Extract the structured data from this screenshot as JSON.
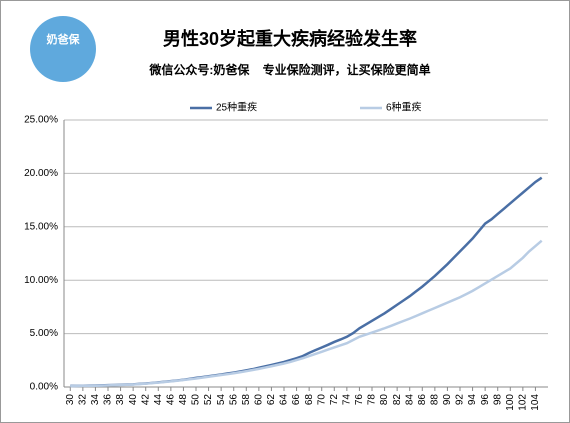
{
  "chart_data": {
    "type": "line",
    "logo": "奶爸保",
    "title": "男性30岁起重大疾病经验发生率",
    "subtitle": "微信公众号:奶爸保    专业保险测评，让买保险更简单",
    "x": [
      30,
      31,
      32,
      33,
      34,
      35,
      36,
      37,
      38,
      39,
      40,
      41,
      42,
      43,
      44,
      45,
      46,
      47,
      48,
      49,
      50,
      51,
      52,
      53,
      54,
      55,
      56,
      57,
      58,
      59,
      60,
      61,
      62,
      63,
      64,
      65,
      66,
      67,
      68,
      69,
      70,
      71,
      72,
      73,
      74,
      75,
      76,
      77,
      78,
      79,
      80,
      81,
      82,
      83,
      84,
      85,
      86,
      87,
      88,
      89,
      90,
      91,
      92,
      93,
      94,
      95,
      96,
      97,
      98,
      99,
      100,
      101,
      102,
      103,
      104,
      105
    ],
    "series": [
      {
        "name": "25种重疾",
        "color": "#4a6fa5",
        "values": [
          0.1,
          0.11,
          0.12,
          0.13,
          0.14,
          0.15,
          0.17,
          0.19,
          0.21,
          0.23,
          0.25,
          0.29,
          0.33,
          0.38,
          0.43,
          0.49,
          0.55,
          0.61,
          0.68,
          0.76,
          0.85,
          0.93,
          1.01,
          1.09,
          1.17,
          1.26,
          1.35,
          1.45,
          1.56,
          1.67,
          1.8,
          1.93,
          2.06,
          2.2,
          2.35,
          2.52,
          2.7,
          2.9,
          3.2,
          3.45,
          3.7,
          3.95,
          4.22,
          4.45,
          4.7,
          5.05,
          5.5,
          5.85,
          6.2,
          6.55,
          6.9,
          7.3,
          7.7,
          8.1,
          8.5,
          8.95,
          9.4,
          9.9,
          10.4,
          10.95,
          11.5,
          12.1,
          12.7,
          13.3,
          13.9,
          14.6,
          15.3,
          15.7,
          16.2,
          16.7,
          17.2,
          17.7,
          18.2,
          18.7,
          19.2,
          19.6
        ]
      },
      {
        "name": "6种重疾",
        "color": "#b8cce4",
        "values": [
          0.08,
          0.09,
          0.1,
          0.11,
          0.12,
          0.13,
          0.15,
          0.17,
          0.19,
          0.21,
          0.23,
          0.27,
          0.31,
          0.36,
          0.41,
          0.47,
          0.53,
          0.59,
          0.66,
          0.73,
          0.8,
          0.88,
          0.96,
          1.04,
          1.12,
          1.2,
          1.29,
          1.38,
          1.48,
          1.59,
          1.7,
          1.82,
          1.94,
          2.07,
          2.2,
          2.35,
          2.52,
          2.7,
          2.9,
          3.1,
          3.3,
          3.5,
          3.7,
          3.9,
          4.1,
          4.4,
          4.7,
          4.9,
          5.1,
          5.3,
          5.5,
          5.72,
          5.95,
          6.18,
          6.4,
          6.65,
          6.9,
          7.15,
          7.4,
          7.65,
          7.9,
          8.15,
          8.4,
          8.7,
          9.0,
          9.35,
          9.7,
          10.05,
          10.4,
          10.75,
          11.1,
          11.6,
          12.1,
          12.7,
          13.2,
          13.7
        ]
      }
    ],
    "xlim": [
      29,
      106
    ],
    "xticks": [
      30,
      32,
      34,
      36,
      38,
      40,
      42,
      44,
      46,
      48,
      50,
      52,
      54,
      56,
      58,
      60,
      62,
      64,
      66,
      68,
      70,
      72,
      74,
      76,
      78,
      80,
      82,
      84,
      86,
      88,
      90,
      92,
      94,
      96,
      98,
      100,
      102,
      104
    ],
    "ylim": [
      0,
      25
    ],
    "yticks": [
      {
        "value": 0,
        "label": "0.00%"
      },
      {
        "value": 5,
        "label": "5.00%"
      },
      {
        "value": 10,
        "label": "10.00%"
      },
      {
        "value": 15,
        "label": "15.00%"
      },
      {
        "value": 20,
        "label": "20.00%"
      },
      {
        "value": 25,
        "label": "25.00%"
      }
    ],
    "grid": true,
    "legend": "top"
  }
}
